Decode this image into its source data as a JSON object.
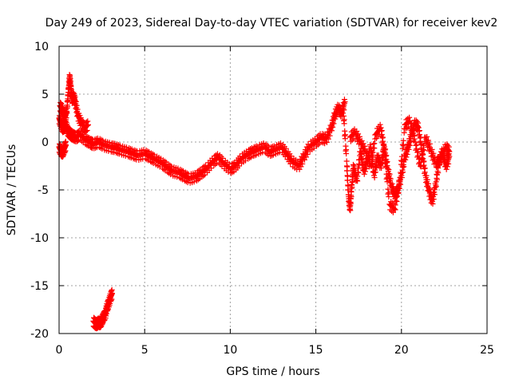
{
  "chart_data": {
    "type": "scatter",
    "title": "Day 249 of 2023, Sidereal Day-to-day VTEC variation (SDTVAR) for receiver kev2",
    "xlabel": "GPS time / hours",
    "ylabel": "SDTVAR / TECUs",
    "xlim": [
      0,
      25
    ],
    "ylim": [
      -20,
      10
    ],
    "xticks": [
      0,
      5,
      10,
      15,
      20,
      25
    ],
    "yticks": [
      10,
      5,
      0,
      -5,
      -10,
      -15,
      -20
    ],
    "xtick_labels": [
      "0",
      "5",
      "10",
      "15",
      "20",
      "25"
    ],
    "ytick_labels": [
      "10",
      "5",
      "0",
      "-5",
      "-10",
      "-15",
      "-20"
    ],
    "grid": true,
    "marker": "+",
    "color": "#ff0000",
    "series": [
      {
        "name": "main-trace",
        "x": [
          0.0,
          0.1,
          0.2,
          0.3,
          0.4,
          0.5,
          0.6,
          0.7,
          0.8,
          1.0,
          1.2,
          1.5,
          1.8,
          2.0,
          2.3,
          2.6,
          3.0,
          3.3,
          3.6,
          4.0,
          4.3,
          4.6,
          5.0,
          5.3,
          5.6,
          6.0,
          6.3,
          6.6,
          7.0,
          7.3,
          7.6,
          8.0,
          8.3,
          8.6,
          9.0,
          9.3,
          9.6,
          10.0,
          10.3,
          10.6,
          11.0,
          11.3,
          11.6,
          12.0,
          12.3,
          12.6,
          13.0,
          13.3,
          13.6,
          14.0,
          14.3,
          14.6,
          15.0,
          15.3,
          15.6,
          15.9,
          16.1,
          16.3,
          16.5,
          16.7
        ],
        "y": [
          2.5,
          2.0,
          1.5,
          1.6,
          1.8,
          1.2,
          1.0,
          0.8,
          0.7,
          0.5,
          0.8,
          0.3,
          0.0,
          -0.2,
          0.0,
          -0.3,
          -0.5,
          -0.6,
          -0.8,
          -1.0,
          -1.2,
          -1.4,
          -1.2,
          -1.5,
          -1.8,
          -2.2,
          -2.6,
          -3.0,
          -3.2,
          -3.5,
          -3.8,
          -3.6,
          -3.2,
          -2.8,
          -2.0,
          -1.6,
          -2.2,
          -2.8,
          -2.5,
          -1.8,
          -1.3,
          -1.0,
          -0.8,
          -0.5,
          -1.0,
          -0.8,
          -0.5,
          -1.2,
          -2.0,
          -2.5,
          -1.5,
          -0.5,
          0.0,
          0.5,
          0.3,
          1.5,
          2.8,
          3.6,
          3.0,
          4.2
        ]
      },
      {
        "name": "early-spike",
        "x": [
          0.05,
          0.15,
          0.25,
          0.35,
          0.45,
          0.55,
          0.62,
          0.68,
          0.75,
          0.85,
          0.95,
          1.1,
          1.3,
          1.5,
          1.7
        ],
        "y": [
          3.8,
          3.5,
          3.0,
          2.6,
          3.2,
          5.5,
          6.8,
          5.8,
          4.5,
          4.8,
          4.2,
          2.8,
          2.0,
          1.5,
          1.8
        ]
      },
      {
        "name": "early-low",
        "x": [
          0.0,
          0.1,
          0.2,
          0.3,
          0.4
        ],
        "y": [
          -0.5,
          -0.9,
          -1.1,
          -0.7,
          -0.3
        ]
      },
      {
        "name": "late-trace-a",
        "x": [
          16.6,
          16.8,
          16.9,
          17.0,
          17.1,
          17.2,
          17.4,
          17.6,
          17.8,
          18.0,
          18.2,
          18.4,
          18.6,
          18.8,
          19.0,
          19.2,
          19.4,
          19.6,
          19.8,
          20.0,
          20.2,
          20.4,
          20.6,
          20.8,
          21.0,
          21.2,
          21.4,
          21.6,
          21.8,
          22.0,
          22.2,
          22.4,
          22.6,
          22.8
        ],
        "y": [
          3.5,
          -2.0,
          -5.5,
          -7.0,
          -4.5,
          -2.5,
          -4.0,
          -1.0,
          -3.0,
          -2.0,
          -0.5,
          -3.5,
          -1.5,
          -2.5,
          -0.5,
          -2.8,
          -4.5,
          -5.5,
          -5.0,
          -3.5,
          -1.5,
          -0.5,
          1.0,
          2.0,
          1.5,
          -1.0,
          -3.5,
          -5.0,
          -6.2,
          -4.5,
          -2.0,
          -1.0,
          -2.5,
          -1.5
        ]
      },
      {
        "name": "late-trace-b",
        "x": [
          17.0,
          17.3,
          17.6,
          17.9,
          18.2,
          18.5,
          18.8,
          19.0,
          19.3,
          19.6,
          19.9,
          20.2,
          20.5,
          20.8,
          21.1,
          21.4,
          21.7,
          22.0,
          22.3,
          22.6,
          22.8
        ],
        "y": [
          0.5,
          1.0,
          0.0,
          -1.0,
          -2.5,
          0.8,
          1.5,
          -1.0,
          -6.5,
          -7.0,
          -4.0,
          1.8,
          2.2,
          0.0,
          -2.5,
          0.5,
          -0.8,
          -2.2,
          -1.8,
          -0.5,
          -1.0
        ]
      },
      {
        "name": "low-segment",
        "x": [
          2.0,
          2.1,
          2.2,
          2.3,
          2.4,
          2.5,
          2.6,
          2.7,
          2.8,
          2.9,
          3.0,
          3.1
        ],
        "y": [
          -18.7,
          -18.9,
          -19.0,
          -18.8,
          -18.9,
          -18.6,
          -18.2,
          -18.0,
          -17.2,
          -16.8,
          -16.2,
          -15.8
        ]
      }
    ]
  }
}
